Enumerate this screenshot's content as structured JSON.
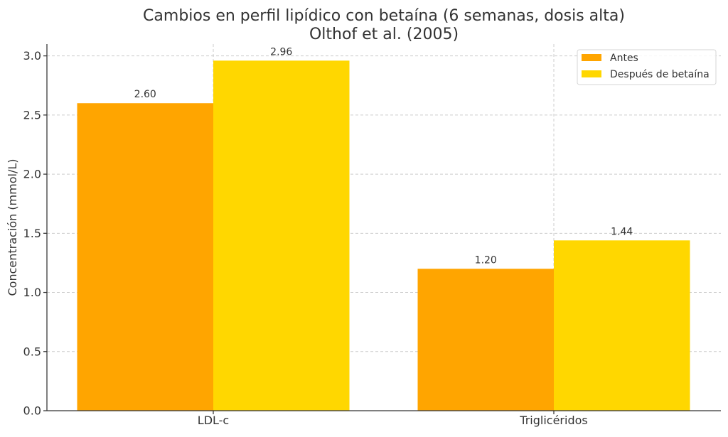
{
  "chart_data": {
    "type": "bar",
    "title": "Cambios en perfil lipídico con betaína (6 semanas, dosis alta)",
    "subtitle": "Olthof et al. (2005)",
    "xlabel": "",
    "ylabel": "Concentración (mmol/L)",
    "categories": [
      "LDL-c",
      "Triglicéridos"
    ],
    "series": [
      {
        "name": "Antes",
        "values": [
          2.6,
          1.2
        ],
        "color": "#FFA500",
        "labels": [
          "2.60",
          "1.20"
        ]
      },
      {
        "name": "Después de betaína",
        "values": [
          2.96,
          1.44
        ],
        "color": "#FFD700",
        "labels": [
          "2.96",
          "1.44"
        ]
      }
    ],
    "ylim": [
      0,
      3.1
    ],
    "yticks": [
      0.0,
      0.5,
      1.0,
      1.5,
      2.0,
      2.5,
      3.0
    ],
    "ytick_labels": [
      "0.0",
      "0.5",
      "1.0",
      "1.5",
      "2.0",
      "2.5",
      "3.0"
    ],
    "grid": true,
    "legend_position": "top-right"
  }
}
